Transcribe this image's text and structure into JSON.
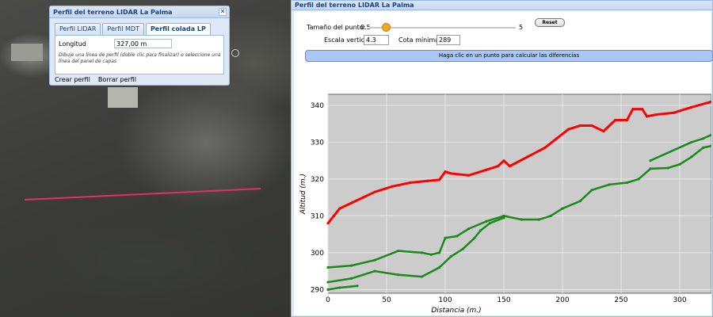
{
  "dialog": {
    "title": "Perfil del terreno LIDAR La Palma",
    "close_glyph": "✕",
    "tabs": [
      {
        "label": "Perfil LIDAR",
        "active": false
      },
      {
        "label": "Perfil MDT",
        "active": false
      },
      {
        "label": "Perfil colada LP",
        "active": true
      }
    ],
    "length_label": "Longitud",
    "length_value": "327,00 m",
    "help_text": "Dibuje una línea de perfil (doble clic para finalizar) o seleccione una línea del panel de capas",
    "create_button": "Crear perfil",
    "clear_button": "Borrar perfil"
  },
  "profile": {
    "title": "Perfil del terreno LIDAR La Palma",
    "point_size_label": "Tamaño del punto:",
    "point_size_min": "0.5",
    "point_size_max": "5",
    "point_size_value": 1,
    "reset_button": "Reset",
    "vertical_scale_label": "Escala vertical:",
    "vertical_scale_value": "4.3",
    "min_elevation_label": "Cota mínima:",
    "min_elevation_value": "289",
    "info_text": "Haga clic en un punto para calcular las diferencias"
  },
  "colors": {
    "lidar_line": "#e0306a",
    "series_red": "#ff0000",
    "series_green": "#1a8a1a",
    "plot_bg": "#cccccc"
  },
  "chart_data": {
    "type": "scatter",
    "xlabel": "Distancia (m.)",
    "ylabel": "Altitud (m.)",
    "xlim": [
      0,
      327
    ],
    "ylim": [
      289,
      343
    ],
    "x_ticks": [
      0,
      50,
      100,
      150,
      200,
      250,
      300
    ],
    "y_ticks": [
      290,
      300,
      310,
      320,
      330,
      340
    ],
    "grid": true,
    "series": [
      {
        "color": "#ff0000",
        "points": [
          [
            0,
            308
          ],
          [
            5,
            310
          ],
          [
            10,
            312
          ],
          [
            20,
            313.5
          ],
          [
            30,
            315
          ],
          [
            40,
            316.5
          ],
          [
            55,
            318
          ],
          [
            70,
            319
          ],
          [
            85,
            319.5
          ],
          [
            95,
            319.8
          ],
          [
            100,
            322
          ],
          [
            105,
            321.5
          ],
          [
            120,
            321
          ],
          [
            135,
            322.5
          ],
          [
            145,
            323.5
          ],
          [
            150,
            325
          ],
          [
            155,
            323.5
          ],
          [
            170,
            326
          ],
          [
            185,
            328.5
          ],
          [
            195,
            331
          ],
          [
            205,
            333.5
          ],
          [
            215,
            334.5
          ],
          [
            225,
            334.5
          ],
          [
            235,
            333
          ],
          [
            245,
            336
          ],
          [
            255,
            336
          ],
          [
            260,
            339
          ],
          [
            268,
            339
          ],
          [
            272,
            337
          ],
          [
            280,
            337.5
          ],
          [
            295,
            338
          ],
          [
            310,
            339.5
          ],
          [
            327,
            341
          ]
        ]
      },
      {
        "color": "#1a8a1a",
        "points": [
          [
            0,
            296
          ],
          [
            20,
            296.5
          ],
          [
            40,
            298
          ],
          [
            60,
            300.5
          ],
          [
            80,
            300
          ],
          [
            88,
            299.5
          ],
          [
            95,
            300
          ],
          [
            100,
            304
          ],
          [
            110,
            304.5
          ],
          [
            120,
            306.5
          ],
          [
            135,
            308.5
          ],
          [
            150,
            310
          ],
          [
            165,
            309
          ],
          [
            180,
            309
          ],
          [
            190,
            310
          ],
          [
            200,
            312
          ],
          [
            215,
            314
          ],
          [
            225,
            317
          ],
          [
            240,
            318.5
          ],
          [
            255,
            319
          ],
          [
            265,
            320
          ],
          [
            275,
            322.8
          ],
          [
            290,
            323
          ],
          [
            300,
            324
          ],
          [
            310,
            326
          ],
          [
            320,
            328.5
          ],
          [
            327,
            329
          ]
        ]
      },
      {
        "color": "#1a8a1a",
        "points": [
          [
            0,
            292
          ],
          [
            20,
            293
          ],
          [
            40,
            295
          ],
          [
            60,
            294
          ],
          [
            80,
            293.5
          ],
          [
            95,
            296
          ],
          [
            105,
            299
          ],
          [
            115,
            301
          ],
          [
            125,
            304
          ],
          [
            130,
            306
          ],
          [
            138,
            308
          ],
          [
            150,
            309.5
          ]
        ]
      },
      {
        "color": "#1a8a1a",
        "points": [
          [
            0,
            290
          ],
          [
            10,
            290.5
          ],
          [
            25,
            291
          ]
        ]
      },
      {
        "color": "#1a8a1a",
        "points": [
          [
            275,
            325
          ],
          [
            310,
            330
          ],
          [
            320,
            331
          ],
          [
            327,
            332
          ]
        ]
      }
    ]
  }
}
